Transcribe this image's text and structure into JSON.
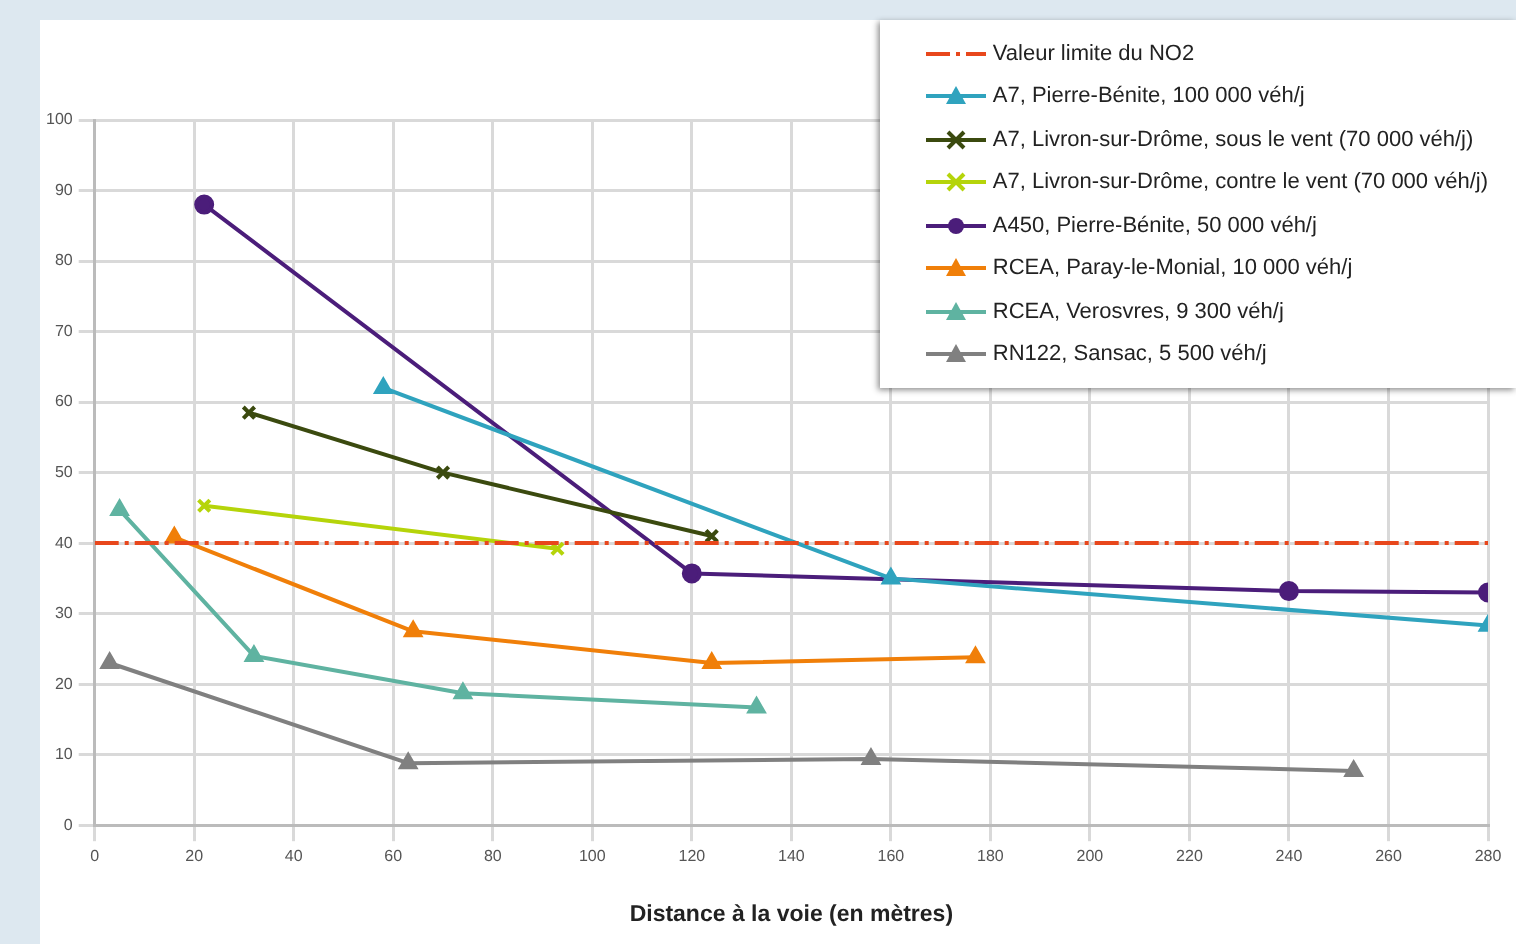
{
  "chart_data": {
    "type": "line",
    "xlabel": "Distance à la voie (en mètres)",
    "xlim": [
      0,
      280
    ],
    "xticks": [
      0,
      20,
      40,
      60,
      80,
      100,
      120,
      140,
      160,
      180,
      200,
      220,
      240,
      260,
      280
    ],
    "ylim": [
      0,
      100
    ],
    "yticks": [
      0,
      10,
      20,
      30,
      40,
      50,
      60,
      70,
      80,
      90,
      100
    ],
    "grid": true,
    "legend": "top right",
    "series": [
      {
        "name": "Valeur limite du NO2",
        "color": "#e8471c",
        "x": [
          0,
          280
        ],
        "values": [
          40,
          40
        ],
        "marker": "none",
        "line_style": "dashed"
      },
      {
        "name": "A7, Pierre-Bénite, 100 000 véh/j",
        "color": "#2fa3be",
        "x": [
          58,
          160,
          280
        ],
        "values": [
          62,
          35,
          28.3
        ],
        "marker": "triangle"
      },
      {
        "name": "A7, Livron-sur-Drôme, sous le vent (70 000 véh/j)",
        "color": "#3b4a0f",
        "x": [
          31,
          70,
          124
        ],
        "values": [
          58.5,
          50,
          41
        ],
        "marker": "cross"
      },
      {
        "name": "A7, Livron-sur-Drôme, contre le vent (70 000 véh/j)",
        "color": "#b5d40a",
        "x": [
          22,
          93
        ],
        "values": [
          45.3,
          39.2
        ],
        "marker": "cross"
      },
      {
        "name": "A450, Pierre-Bénite, 50 000 véh/j",
        "color": "#4b1d7a",
        "x": [
          22,
          120,
          240,
          280
        ],
        "values": [
          88,
          35.7,
          33.2,
          33
        ],
        "marker": "circle"
      },
      {
        "name": "RCEA, Paray-le-Monial, 10 000 véh/j",
        "color": "#f07f09",
        "x": [
          16,
          64,
          124,
          177
        ],
        "values": [
          40.8,
          27.5,
          23,
          23.8
        ],
        "marker": "triangle"
      },
      {
        "name": "RCEA, Verosvres, 9 300 véh/j",
        "color": "#5fb3a1",
        "x": [
          5,
          32,
          74,
          133
        ],
        "values": [
          44.7,
          24,
          18.7,
          16.7
        ],
        "marker": "triangle"
      },
      {
        "name": "RN122, Sansac, 5 500 véh/j",
        "color": "#808080",
        "x": [
          3,
          63,
          156,
          253
        ],
        "values": [
          23,
          8.8,
          9.4,
          7.7
        ],
        "marker": "triangle"
      }
    ]
  }
}
